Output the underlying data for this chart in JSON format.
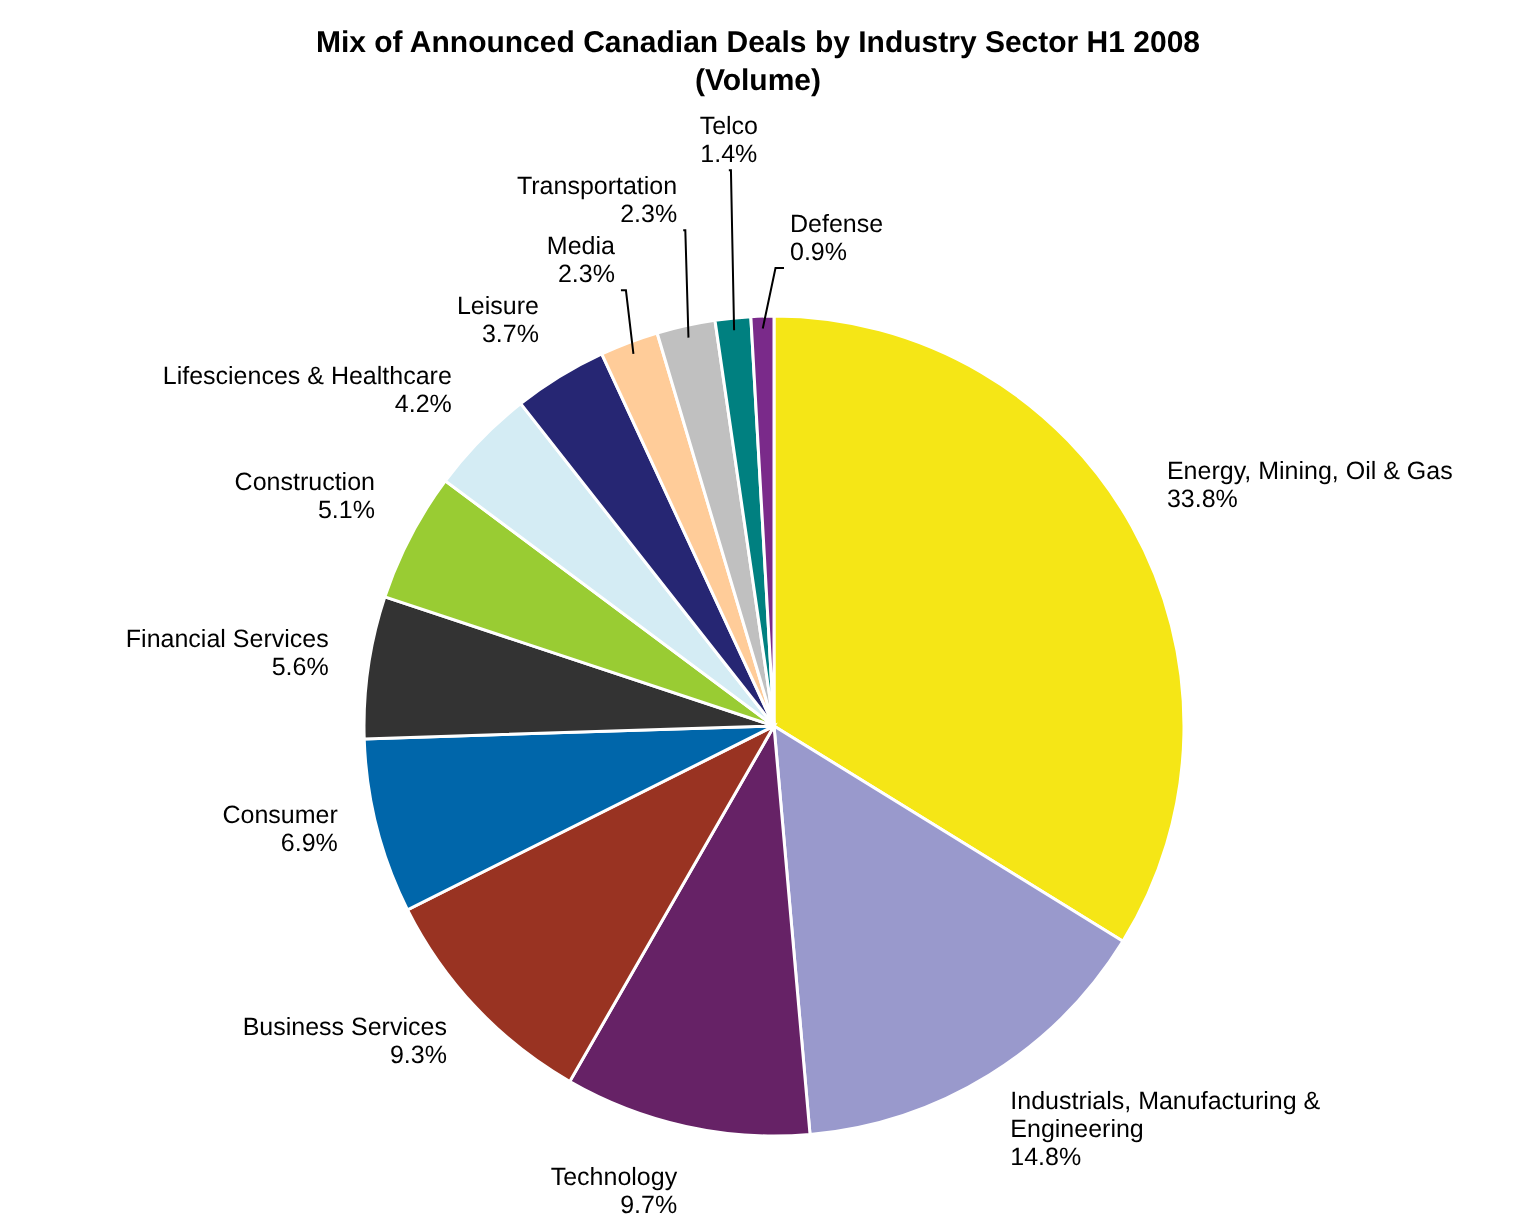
{
  "chart_data": {
    "type": "pie",
    "title": "Mix of Announced Canadian Deals by Industry Sector H1 2008 (Volume)",
    "categories": [
      "Energy, Mining, Oil & Gas",
      "Industrials, Manufacturing & Engineering",
      "Technology",
      "Business Services",
      "Consumer",
      "Financial Services",
      "Construction",
      "Lifesciences & Healthcare",
      "Leisure",
      "Media",
      "Transportation",
      "Telco",
      "Defense"
    ],
    "values": [
      33.8,
      14.8,
      9.7,
      9.3,
      6.9,
      5.6,
      5.1,
      4.2,
      3.7,
      2.3,
      2.3,
      1.4,
      0.9
    ],
    "value_labels": [
      "33.8%",
      "14.8%",
      "9.7%",
      "9.3%",
      "6.9%",
      "5.6%",
      "5.1%",
      "4.2%",
      "3.7%",
      "2.3%",
      "2.3%",
      "1.4%",
      "0.9%"
    ],
    "colors": [
      "#f5e616",
      "#9999cc",
      "#662266",
      "#993322",
      "#0066aa",
      "#333333",
      "#99cc33",
      "#d4ecf4",
      "#262673",
      "#ffcc99",
      "#c0c0c0",
      "#008080",
      "#7a2a8a"
    ]
  }
}
